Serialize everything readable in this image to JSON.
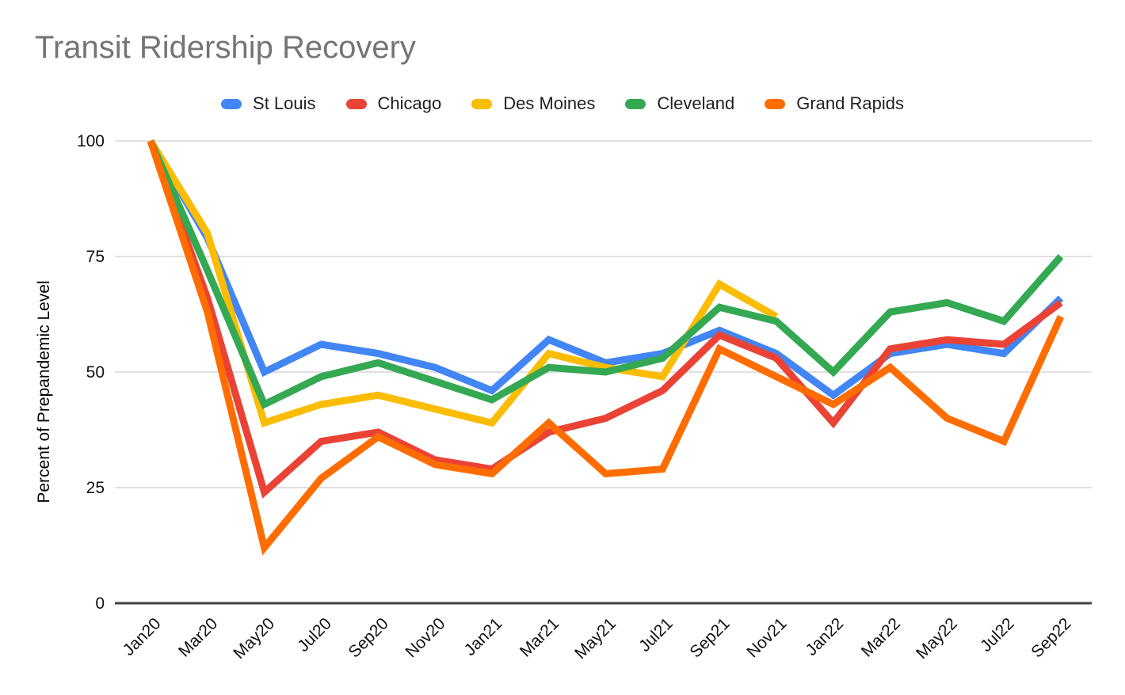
{
  "title": "Transit Ridership Recovery",
  "chart_data": {
    "type": "line",
    "title": "Transit Ridership Recovery",
    "xlabel": "",
    "ylabel": "Percent of Prepandemic Level",
    "ylim": [
      0,
      100
    ],
    "yticks": [
      0,
      25,
      50,
      75,
      100
    ],
    "grid": true,
    "legend_position": "top",
    "x": [
      "Jan20",
      "Mar20",
      "May20",
      "Jul20",
      "Sep20",
      "Nov20",
      "Jan21",
      "Mar21",
      "May21",
      "Jul21",
      "Sep21",
      "Nov21",
      "Jan22",
      "Mar22",
      "May22",
      "Jul22",
      "Sep22"
    ],
    "series": [
      {
        "name": "St Louis",
        "color": "#4285F4",
        "values": [
          100,
          79,
          50,
          56,
          54,
          51,
          46,
          57,
          52,
          54,
          59,
          54,
          45,
          54,
          56,
          54,
          66
        ]
      },
      {
        "name": "Chicago",
        "color": "#EA4335",
        "values": [
          100,
          66,
          24,
          35,
          37,
          31,
          29,
          37,
          40,
          46,
          58,
          53,
          39,
          55,
          57,
          56,
          65
        ]
      },
      {
        "name": "Des Moines",
        "color": "#FBBC04",
        "values": [
          100,
          80,
          39,
          43,
          45,
          42,
          39,
          54,
          51,
          49,
          69,
          62,
          null,
          null,
          null,
          null,
          null
        ]
      },
      {
        "name": "Cleveland",
        "color": "#34A853",
        "values": [
          100,
          72,
          43,
          49,
          52,
          48,
          44,
          51,
          50,
          53,
          64,
          61,
          50,
          63,
          65,
          61,
          75
        ]
      },
      {
        "name": "Grand Rapids",
        "color": "#FF6D01",
        "values": [
          100,
          63,
          12,
          27,
          36,
          30,
          28,
          39,
          28,
          29,
          55,
          49,
          43,
          51,
          40,
          35,
          62
        ]
      }
    ]
  },
  "axis_colors": {
    "baseline": "#424242",
    "gridline": "#e0e0e0",
    "tick_text": "#111111",
    "title_text": "#757575"
  }
}
